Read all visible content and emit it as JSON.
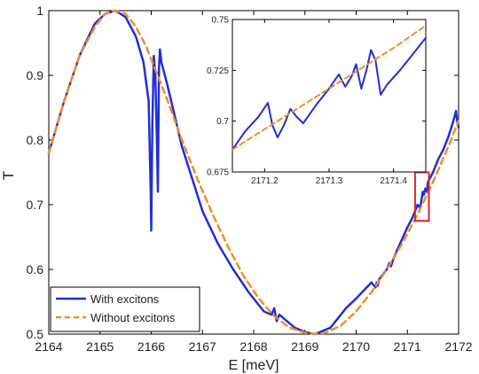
{
  "chart_data": [
    {
      "type": "line",
      "xlabel": "E [meV]",
      "ylabel": "T",
      "xlim": [
        2164,
        2172
      ],
      "ylim": [
        0.5,
        1.0
      ],
      "x_ticks": [
        2164,
        2165,
        2166,
        2167,
        2168,
        2169,
        2170,
        2171,
        2172
      ],
      "y_ticks": [
        0.5,
        0.6,
        0.7,
        0.8,
        0.9,
        1
      ],
      "y_tick_labels": [
        "0.5",
        "0.6",
        "0.7",
        "0.8",
        "0.9",
        "1"
      ],
      "legend_position": "bottom-left",
      "highlight_box": {
        "x_range": [
          2171.15,
          2171.42
        ],
        "y_range": [
          0.675,
          0.75
        ],
        "color": "#d62728"
      },
      "series": [
        {
          "name": "With excitons",
          "color": "#1f2fd6",
          "style": "solid",
          "x": [
            2164.0,
            2164.3,
            2164.6,
            2164.9,
            2165.1,
            2165.3,
            2165.5,
            2165.7,
            2165.85,
            2165.95,
            2165.99,
            2166.0,
            2166.02,
            2166.05,
            2166.08,
            2166.11,
            2166.13,
            2166.15,
            2166.17,
            2166.2,
            2166.3,
            2166.45,
            2166.6,
            2166.8,
            2167.0,
            2167.3,
            2167.6,
            2167.9,
            2168.2,
            2168.35,
            2168.4,
            2168.45,
            2168.5,
            2168.8,
            2169.0,
            2169.2,
            2169.5,
            2169.8,
            2170.0,
            2170.3,
            2170.38,
            2170.4,
            2170.42,
            2170.45,
            2170.6,
            2170.65,
            2170.68,
            2170.72,
            2170.8,
            2171.0,
            2171.1,
            2171.2,
            2171.25,
            2171.3,
            2171.32,
            2171.35,
            2171.38,
            2171.4,
            2171.5,
            2171.6,
            2171.7,
            2171.8,
            2171.9,
            2171.95,
            2171.97,
            2172.0
          ],
          "y": [
            0.78,
            0.86,
            0.93,
            0.98,
            0.995,
            1.0,
            0.99,
            0.96,
            0.92,
            0.86,
            0.72,
            0.66,
            0.82,
            0.93,
            0.9,
            0.8,
            0.72,
            0.91,
            0.94,
            0.92,
            0.89,
            0.84,
            0.79,
            0.74,
            0.69,
            0.64,
            0.6,
            0.565,
            0.535,
            0.53,
            0.54,
            0.52,
            0.53,
            0.51,
            0.503,
            0.5,
            0.51,
            0.54,
            0.555,
            0.58,
            0.572,
            0.58,
            0.575,
            0.585,
            0.6,
            0.61,
            0.605,
            0.615,
            0.63,
            0.665,
            0.68,
            0.7,
            0.695,
            0.72,
            0.715,
            0.725,
            0.72,
            0.735,
            0.75,
            0.77,
            0.785,
            0.805,
            0.83,
            0.845,
            0.83,
            0.82
          ]
        },
        {
          "name": "Without excitons",
          "color": "#f28c28",
          "style": "dashed",
          "x": [
            2164.0,
            2164.3,
            2164.6,
            2164.9,
            2165.1,
            2165.3,
            2165.5,
            2165.7,
            2165.9,
            2166.1,
            2166.3,
            2166.6,
            2166.9,
            2167.2,
            2167.5,
            2167.8,
            2168.1,
            2168.4,
            2168.7,
            2169.0,
            2169.2,
            2169.4,
            2169.7,
            2170.0,
            2170.3,
            2170.6,
            2170.9,
            2171.2,
            2171.5,
            2171.8,
            2172.0
          ],
          "y": [
            0.78,
            0.86,
            0.93,
            0.975,
            0.995,
            1.0,
            0.995,
            0.975,
            0.945,
            0.905,
            0.865,
            0.8,
            0.74,
            0.685,
            0.635,
            0.59,
            0.555,
            0.528,
            0.51,
            0.502,
            0.5,
            0.502,
            0.513,
            0.535,
            0.565,
            0.6,
            0.64,
            0.685,
            0.735,
            0.79,
            0.83
          ]
        }
      ]
    },
    {
      "type": "line",
      "xlim": [
        2171.15,
        2171.45
      ],
      "ylim": [
        0.675,
        0.75
      ],
      "x_ticks": [
        2171.2,
        2171.3,
        2171.4
      ],
      "x_tick_labels": [
        "2171.2",
        "2171.3",
        "2171.4"
      ],
      "y_ticks": [
        0.675,
        0.7,
        0.725,
        0.75
      ],
      "y_tick_labels": [
        "0.675",
        "0.7",
        "0.725",
        "0.75"
      ],
      "series": [
        {
          "name": "With excitons",
          "color": "#1f2fd6",
          "style": "solid",
          "x": [
            2171.15,
            2171.17,
            2171.19,
            2171.205,
            2171.212,
            2171.22,
            2171.23,
            2171.24,
            2171.25,
            2171.26,
            2171.28,
            2171.3,
            2171.315,
            2171.325,
            2171.335,
            2171.342,
            2171.35,
            2171.358,
            2171.365,
            2171.372,
            2171.38,
            2171.39,
            2171.41,
            2171.43,
            2171.45
          ],
          "y": [
            0.686,
            0.695,
            0.702,
            0.709,
            0.698,
            0.692,
            0.698,
            0.706,
            0.702,
            0.699,
            0.708,
            0.716,
            0.723,
            0.717,
            0.722,
            0.728,
            0.716,
            0.725,
            0.735,
            0.73,
            0.713,
            0.718,
            0.725,
            0.733,
            0.741
          ]
        },
        {
          "name": "Without excitons",
          "color": "#f28c28",
          "style": "dashed",
          "x": [
            2171.15,
            2171.2,
            2171.25,
            2171.3,
            2171.35,
            2171.4,
            2171.45
          ],
          "y": [
            0.686,
            0.696,
            0.706,
            0.716,
            0.726,
            0.736,
            0.747
          ]
        }
      ]
    }
  ]
}
